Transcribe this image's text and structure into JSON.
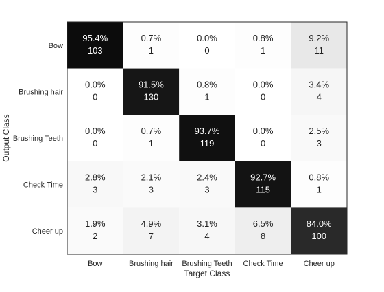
{
  "chart_data": {
    "type": "heatmap",
    "title": "",
    "xlabel": "Target Class",
    "ylabel": "Output Class",
    "x_categories": [
      "Bow",
      "Brushing hair",
      "Brushing Teeth",
      "Check Time",
      "Cheer up"
    ],
    "y_categories": [
      "Bow",
      "Brushing hair",
      "Brushing Teeth",
      "Check Time",
      "Cheer up"
    ],
    "cells": [
      [
        {
          "percent": "95.4%",
          "count": "103",
          "value": 95.4
        },
        {
          "percent": "0.7%",
          "count": "1",
          "value": 0.7
        },
        {
          "percent": "0.0%",
          "count": "0",
          "value": 0.0
        },
        {
          "percent": "0.8%",
          "count": "1",
          "value": 0.8
        },
        {
          "percent": "9.2%",
          "count": "11",
          "value": 9.2
        }
      ],
      [
        {
          "percent": "0.0%",
          "count": "0",
          "value": 0.0
        },
        {
          "percent": "91.5%",
          "count": "130",
          "value": 91.5
        },
        {
          "percent": "0.8%",
          "count": "1",
          "value": 0.8
        },
        {
          "percent": "0.0%",
          "count": "0",
          "value": 0.0
        },
        {
          "percent": "3.4%",
          "count": "4",
          "value": 3.4
        }
      ],
      [
        {
          "percent": "0.0%",
          "count": "0",
          "value": 0.0
        },
        {
          "percent": "0.7%",
          "count": "1",
          "value": 0.7
        },
        {
          "percent": "93.7%",
          "count": "119",
          "value": 93.7
        },
        {
          "percent": "0.0%",
          "count": "0",
          "value": 0.0
        },
        {
          "percent": "2.5%",
          "count": "3",
          "value": 2.5
        }
      ],
      [
        {
          "percent": "2.8%",
          "count": "3",
          "value": 2.8
        },
        {
          "percent": "2.1%",
          "count": "3",
          "value": 2.1
        },
        {
          "percent": "2.4%",
          "count": "3",
          "value": 2.4
        },
        {
          "percent": "92.7%",
          "count": "115",
          "value": 92.7
        },
        {
          "percent": "0.8%",
          "count": "1",
          "value": 0.8
        }
      ],
      [
        {
          "percent": "1.9%",
          "count": "2",
          "value": 1.9
        },
        {
          "percent": "4.9%",
          "count": "7",
          "value": 4.9
        },
        {
          "percent": "3.1%",
          "count": "4",
          "value": 3.1
        },
        {
          "percent": "6.5%",
          "count": "8",
          "value": 6.5
        },
        {
          "percent": "84.0%",
          "count": "100",
          "value": 84.0
        }
      ]
    ],
    "value_range": [
      0,
      100
    ],
    "colormap": "grayscale-inverted"
  }
}
